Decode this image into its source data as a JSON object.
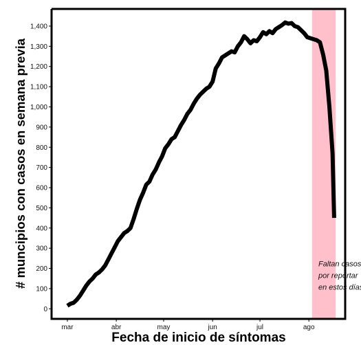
{
  "chart_data": {
    "type": "line",
    "title": "",
    "xlabel": "Fecha de inicio de síntomas",
    "ylabel": "# muncipios con casos en semana previa",
    "x_ticks": [
      {
        "label": "mar",
        "day": 0
      },
      {
        "label": "abr",
        "day": 31
      },
      {
        "label": "may",
        "day": 61
      },
      {
        "label": "jun",
        "day": 92
      },
      {
        "label": "jul",
        "day": 122
      },
      {
        "label": "ago",
        "day": 153
      }
    ],
    "y_ticks": [
      0,
      100,
      200,
      300,
      400,
      500,
      600,
      700,
      800,
      900,
      1000,
      1100,
      1200,
      1300,
      1400
    ],
    "xlim": [
      "2020-02-20",
      "2020-08-24"
    ],
    "ylim": [
      -50,
      1485
    ],
    "legend": "none",
    "grid": false,
    "highlight": {
      "from": "2020-08-03",
      "to": "2020-08-18",
      "color": "#ffc0cb"
    },
    "annotation": {
      "lines": [
        "Faltan casos",
        "por reportar",
        "en estos días"
      ],
      "date": "2020-08-07",
      "value": 210
    },
    "series": [
      {
        "color": "#000000",
        "points": [
          [
            "2020-03-01",
            15
          ],
          [
            "2020-03-03",
            25
          ],
          [
            "2020-03-05",
            30
          ],
          [
            "2020-03-07",
            45
          ],
          [
            "2020-03-09",
            65
          ],
          [
            "2020-03-11",
            90
          ],
          [
            "2020-03-13",
            115
          ],
          [
            "2020-03-15",
            135
          ],
          [
            "2020-03-17",
            150
          ],
          [
            "2020-03-19",
            170
          ],
          [
            "2020-03-21",
            180
          ],
          [
            "2020-03-23",
            195
          ],
          [
            "2020-03-25",
            215
          ],
          [
            "2020-03-27",
            245
          ],
          [
            "2020-03-29",
            275
          ],
          [
            "2020-03-31",
            305
          ],
          [
            "2020-04-02",
            335
          ],
          [
            "2020-04-04",
            355
          ],
          [
            "2020-04-06",
            375
          ],
          [
            "2020-04-08",
            385
          ],
          [
            "2020-04-10",
            400
          ],
          [
            "2020-04-12",
            445
          ],
          [
            "2020-04-14",
            495
          ],
          [
            "2020-04-16",
            540
          ],
          [
            "2020-04-18",
            575
          ],
          [
            "2020-04-20",
            615
          ],
          [
            "2020-04-22",
            630
          ],
          [
            "2020-04-24",
            665
          ],
          [
            "2020-04-26",
            690
          ],
          [
            "2020-04-28",
            725
          ],
          [
            "2020-04-30",
            755
          ],
          [
            "2020-05-02",
            795
          ],
          [
            "2020-05-04",
            815
          ],
          [
            "2020-05-06",
            840
          ],
          [
            "2020-05-08",
            850
          ],
          [
            "2020-05-10",
            880
          ],
          [
            "2020-05-12",
            910
          ],
          [
            "2020-05-14",
            935
          ],
          [
            "2020-05-16",
            965
          ],
          [
            "2020-05-18",
            985
          ],
          [
            "2020-05-20",
            1015
          ],
          [
            "2020-05-22",
            1040
          ],
          [
            "2020-05-24",
            1060
          ],
          [
            "2020-05-26",
            1075
          ],
          [
            "2020-05-28",
            1090
          ],
          [
            "2020-05-30",
            1100
          ],
          [
            "2020-06-01",
            1125
          ],
          [
            "2020-06-03",
            1190
          ],
          [
            "2020-06-05",
            1215
          ],
          [
            "2020-06-07",
            1245
          ],
          [
            "2020-06-09",
            1255
          ],
          [
            "2020-06-11",
            1265
          ],
          [
            "2020-06-13",
            1275
          ],
          [
            "2020-06-15",
            1270
          ],
          [
            "2020-06-17",
            1300
          ],
          [
            "2020-06-19",
            1320
          ],
          [
            "2020-06-21",
            1350
          ],
          [
            "2020-06-23",
            1335
          ],
          [
            "2020-06-25",
            1315
          ],
          [
            "2020-06-27",
            1330
          ],
          [
            "2020-06-29",
            1325
          ],
          [
            "2020-07-01",
            1345
          ],
          [
            "2020-07-03",
            1370
          ],
          [
            "2020-07-05",
            1360
          ],
          [
            "2020-07-07",
            1375
          ],
          [
            "2020-07-09",
            1365
          ],
          [
            "2020-07-11",
            1385
          ],
          [
            "2020-07-13",
            1395
          ],
          [
            "2020-07-15",
            1405
          ],
          [
            "2020-07-17",
            1418
          ],
          [
            "2020-07-19",
            1412
          ],
          [
            "2020-07-21",
            1415
          ],
          [
            "2020-07-23",
            1400
          ],
          [
            "2020-07-25",
            1395
          ],
          [
            "2020-07-27",
            1380
          ],
          [
            "2020-07-29",
            1365
          ],
          [
            "2020-07-31",
            1345
          ],
          [
            "2020-08-02",
            1340
          ],
          [
            "2020-08-04",
            1335
          ],
          [
            "2020-08-06",
            1330
          ],
          [
            "2020-08-08",
            1320
          ],
          [
            "2020-08-10",
            1260
          ],
          [
            "2020-08-12",
            1180
          ],
          [
            "2020-08-14",
            1000
          ],
          [
            "2020-08-16",
            770
          ],
          [
            "2020-08-17",
            450
          ]
        ]
      }
    ]
  }
}
